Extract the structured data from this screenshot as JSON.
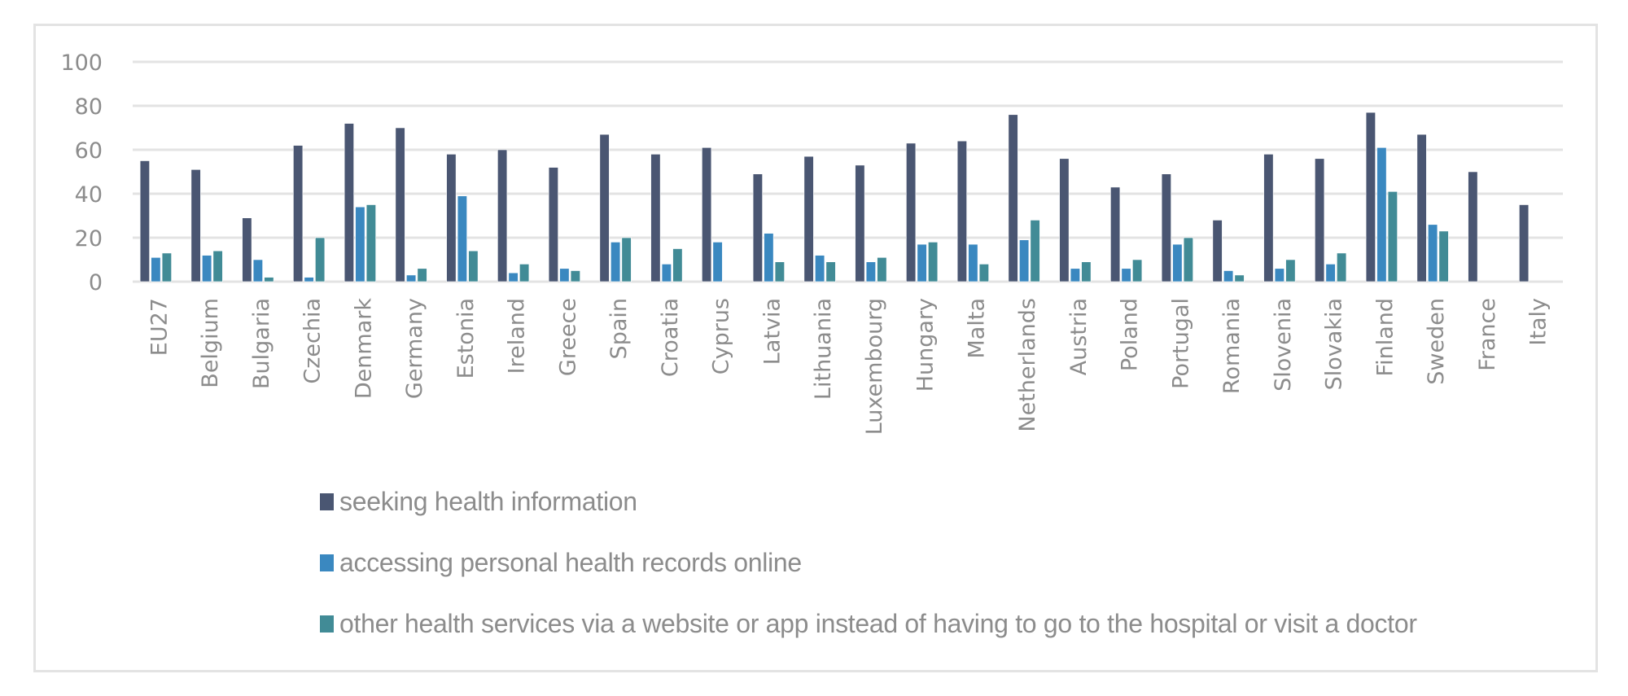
{
  "chart_data": {
    "type": "bar",
    "title": "",
    "xlabel": "",
    "ylabel": "",
    "ylim": [
      0,
      100
    ],
    "yticks": [
      0,
      20,
      40,
      60,
      80,
      100
    ],
    "grid": true,
    "legend_position": "bottom",
    "categories": [
      "EU27",
      "Belgium",
      "Bulgaria",
      "Czechia",
      "Denmark",
      "Germany",
      "Estonia",
      "Ireland",
      "Greece",
      "Spain",
      "Croatia",
      "Cyprus",
      "Latvia",
      "Lithuania",
      "Luxembourg",
      "Hungary",
      "Malta",
      "Netherlands",
      "Austria",
      "Poland",
      "Portugal",
      "Romania",
      "Slovenia",
      "Slovakia",
      "Finland",
      "Sweden",
      "France",
      "Italy"
    ],
    "series": [
      {
        "name": "seeking health information",
        "color": "#4a5672",
        "values": [
          55,
          51,
          29,
          62,
          72,
          70,
          58,
          60,
          52,
          67,
          58,
          61,
          49,
          57,
          53,
          63,
          64,
          76,
          56,
          43,
          49,
          28,
          58,
          56,
          77,
          67,
          50,
          35
        ]
      },
      {
        "name": "accessing personal health records online",
        "color": "#3a88c0",
        "values": [
          11,
          12,
          10,
          2,
          34,
          3,
          39,
          4,
          6,
          18,
          8,
          18,
          22,
          12,
          9,
          17,
          17,
          19,
          6,
          6,
          17,
          5,
          6,
          8,
          61,
          26,
          null,
          null
        ]
      },
      {
        "name": "other health services via a website or app instead of having to go to the hospital or visit a doctor",
        "color": "#418b96",
        "values": [
          13,
          14,
          2,
          20,
          35,
          6,
          14,
          8,
          5,
          20,
          15,
          null,
          9,
          9,
          11,
          18,
          8,
          28,
          9,
          10,
          20,
          3,
          10,
          13,
          41,
          23,
          null,
          null
        ]
      }
    ]
  }
}
